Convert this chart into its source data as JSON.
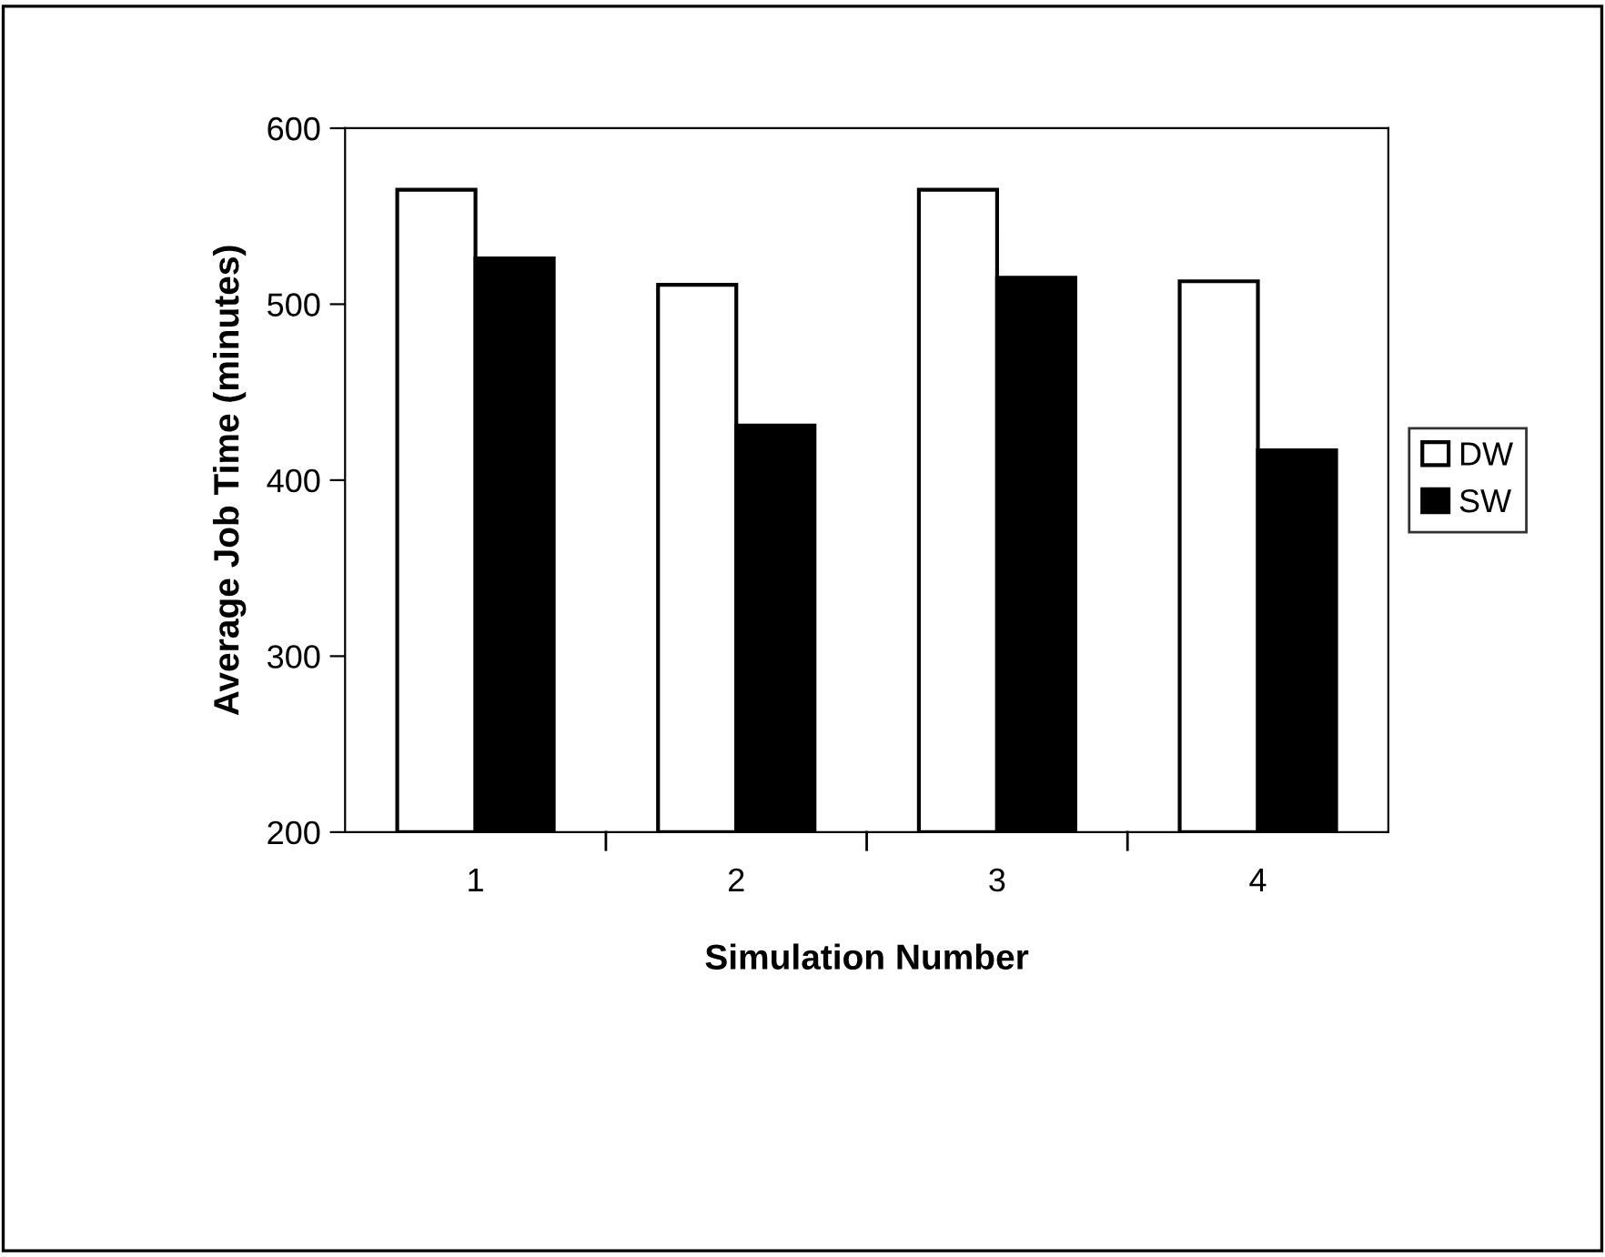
{
  "chart_data": {
    "type": "bar",
    "xlabel": "Simulation Number",
    "ylabel": "Average Job Time (minutes)",
    "categories": [
      "1",
      "2",
      "3",
      "4"
    ],
    "series": [
      {
        "name": "DW",
        "color": "#ffffff",
        "values": [
          565,
          511,
          565,
          513
        ]
      },
      {
        "name": "SW",
        "color": "#000000",
        "values": [
          526,
          431,
          515,
          417
        ]
      }
    ],
    "ylim": [
      200,
      600
    ],
    "yticks": [
      200,
      300,
      400,
      500,
      600
    ],
    "grid": false,
    "legend": "right"
  }
}
